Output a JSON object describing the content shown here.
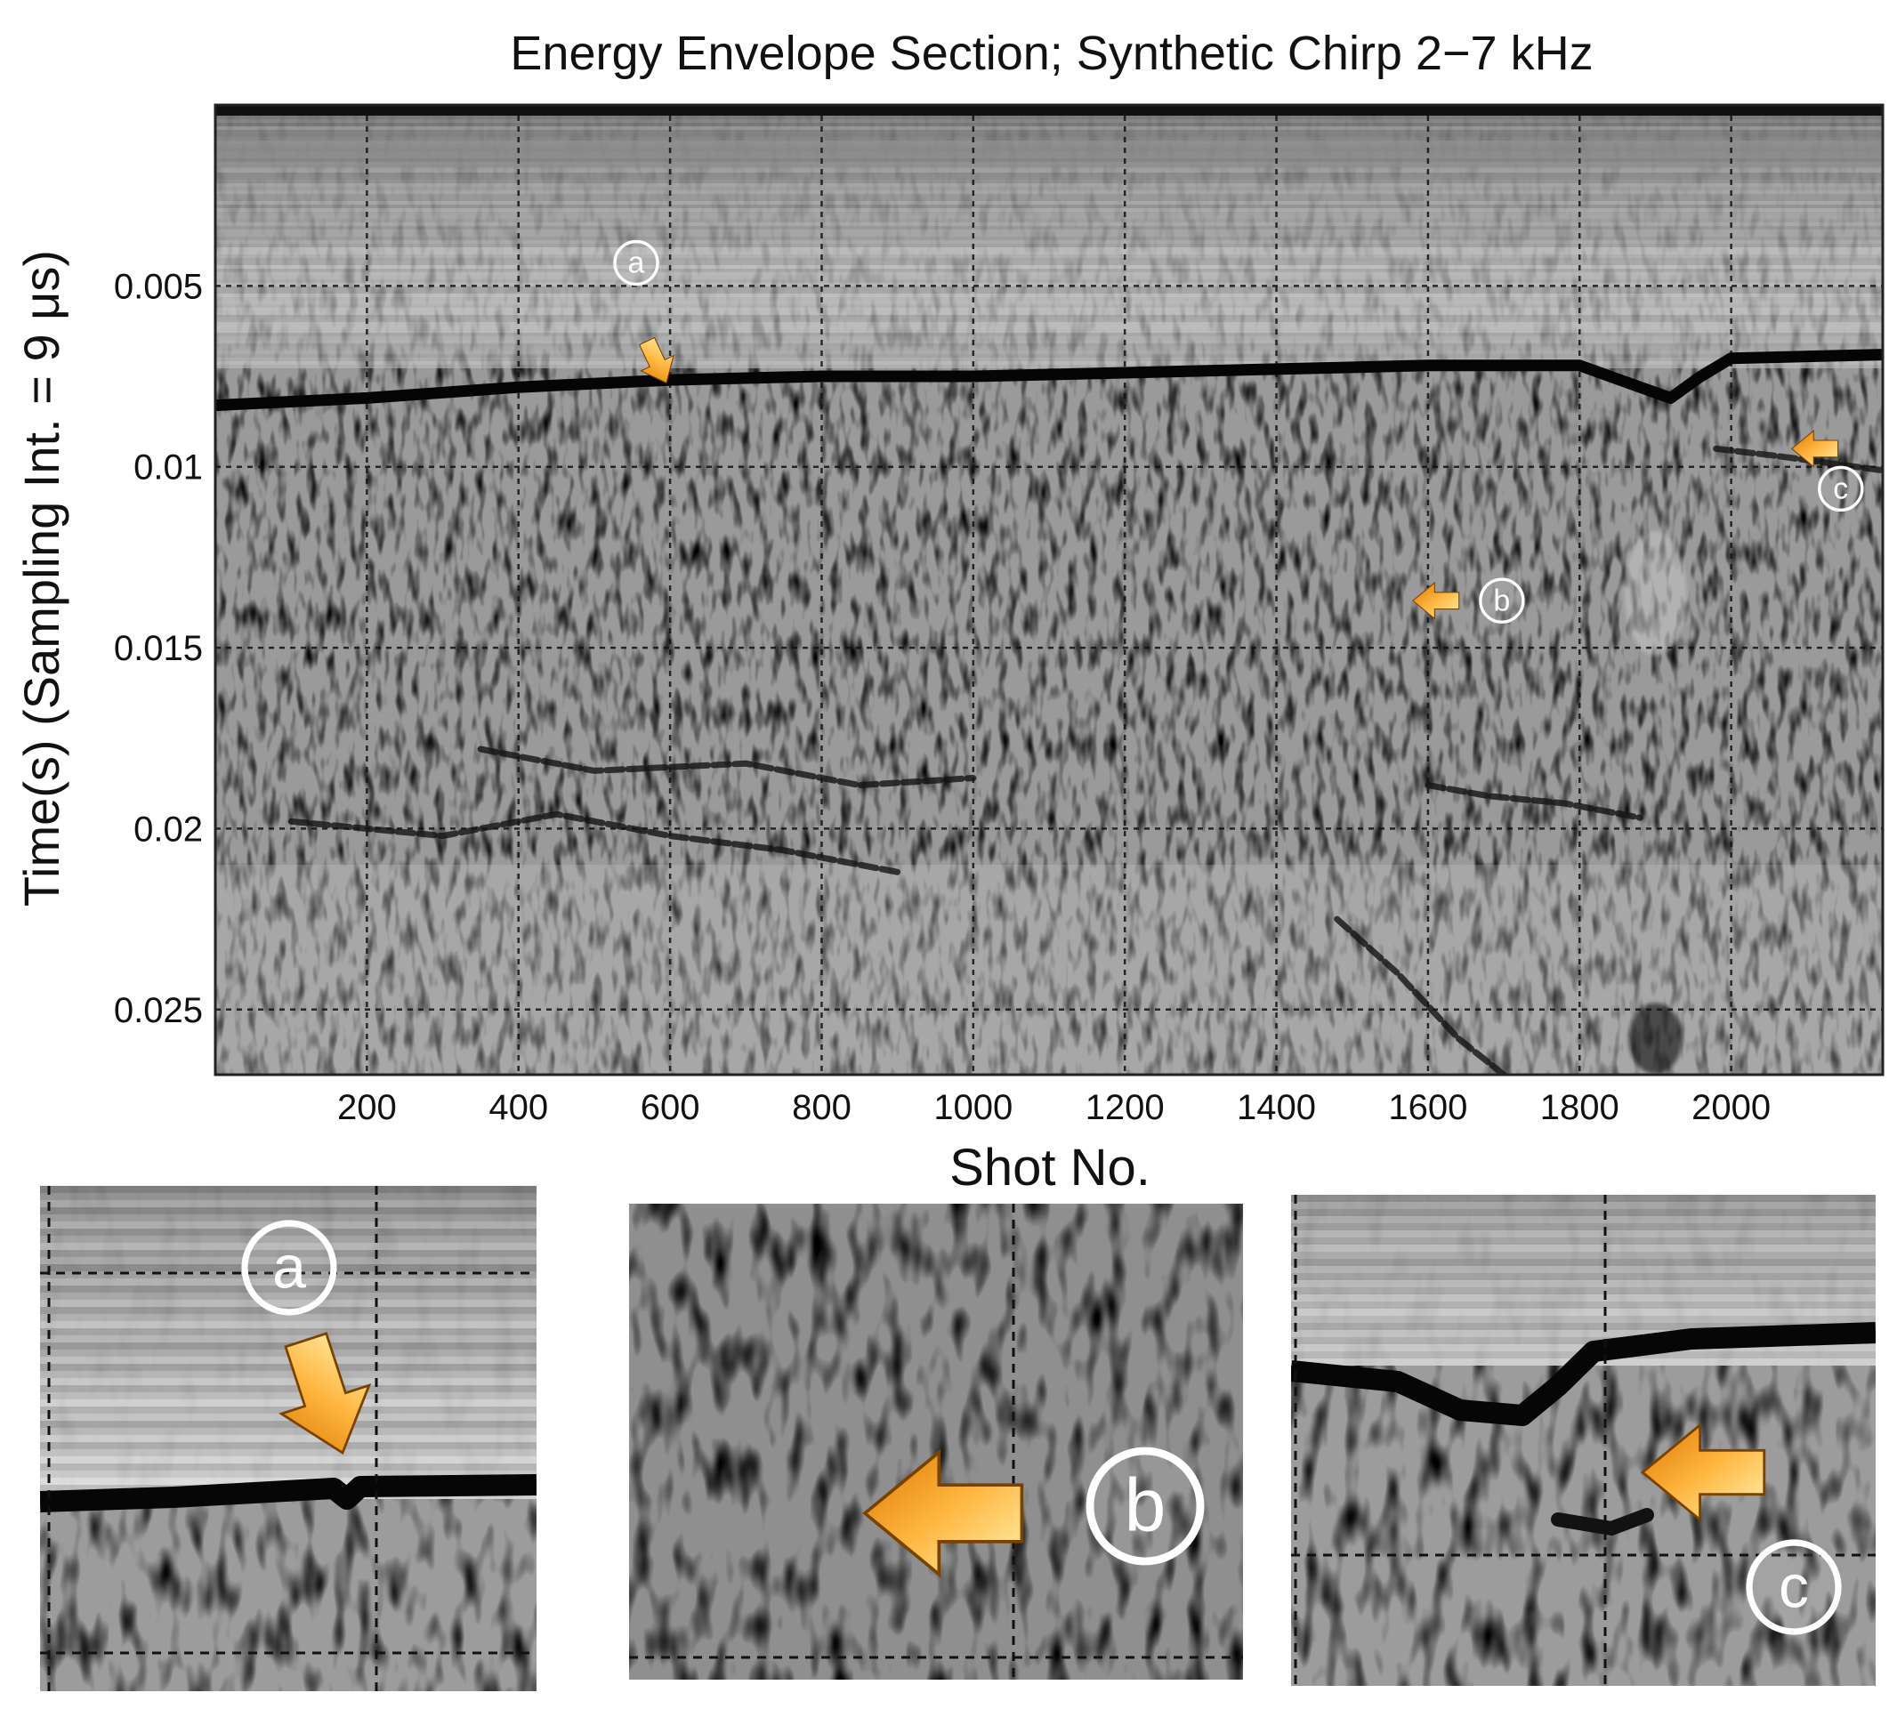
{
  "chart_data": {
    "type": "heatmap",
    "title": "Energy Envelope Section; Synthetic Chirp 2−7 kHz",
    "xlabel": "Shot No.",
    "ylabel": "Time(s) (Sampling Int. = 9 μs)",
    "xlim": [
      0,
      2200
    ],
    "ylim": [
      0,
      0.0268
    ],
    "y_inverted": true,
    "x_ticks": [
      200,
      400,
      600,
      800,
      1000,
      1200,
      1400,
      1600,
      1800,
      2000
    ],
    "y_ticks": [
      0.005,
      0.01,
      0.015,
      0.02,
      0.025
    ],
    "y_tick_labels": [
      "0.005",
      "0.01",
      "0.015",
      "0.02",
      "0.025"
    ],
    "grid": true,
    "colormap": "grayscale",
    "seafloor_reflector": {
      "x": [
        0,
        200,
        400,
        600,
        800,
        1000,
        1200,
        1400,
        1600,
        1800,
        1880,
        1920,
        1960,
        2000,
        2200
      ],
      "y": [
        0.0083,
        0.0081,
        0.0078,
        0.0076,
        0.0075,
        0.0075,
        0.0074,
        0.0073,
        0.0072,
        0.0072,
        0.0078,
        0.0081,
        0.0075,
        0.007,
        0.0069
      ]
    },
    "subbottom_reflectors": [
      {
        "x": [
          100,
          300,
          450,
          600,
          750,
          900
        ],
        "y": [
          0.0198,
          0.0202,
          0.0196,
          0.0202,
          0.0206,
          0.0212
        ]
      },
      {
        "x": [
          350,
          500,
          700,
          850,
          1000
        ],
        "y": [
          0.0178,
          0.0184,
          0.0182,
          0.0188,
          0.0186
        ]
      },
      {
        "x": [
          1480,
          1560,
          1640,
          1700
        ],
        "y": [
          0.0225,
          0.024,
          0.0258,
          0.0268
        ]
      },
      {
        "x": [
          1600,
          1680,
          1780,
          1880
        ],
        "y": [
          0.0188,
          0.0191,
          0.0193,
          0.0197
        ]
      },
      {
        "x": [
          1980,
          2060,
          2200
        ],
        "y": [
          0.0095,
          0.0097,
          0.0101
        ]
      }
    ],
    "annotations": [
      {
        "label": "a",
        "x": 560,
        "y": 0.0067,
        "arrow": "down"
      },
      {
        "label": "b",
        "x": 1580,
        "y": 0.0137,
        "arrow": "left"
      },
      {
        "label": "c",
        "x": 2080,
        "y": 0.0095,
        "arrow": "left"
      }
    ]
  },
  "insets": [
    {
      "label": "a"
    },
    {
      "label": "b"
    },
    {
      "label": "c"
    }
  ],
  "colors": {
    "arrow_light": "#fff2b0",
    "arrow_mid": "#ffb640",
    "arrow_dark": "#d97800",
    "reflector": "#050505",
    "background": "#ffffff"
  }
}
